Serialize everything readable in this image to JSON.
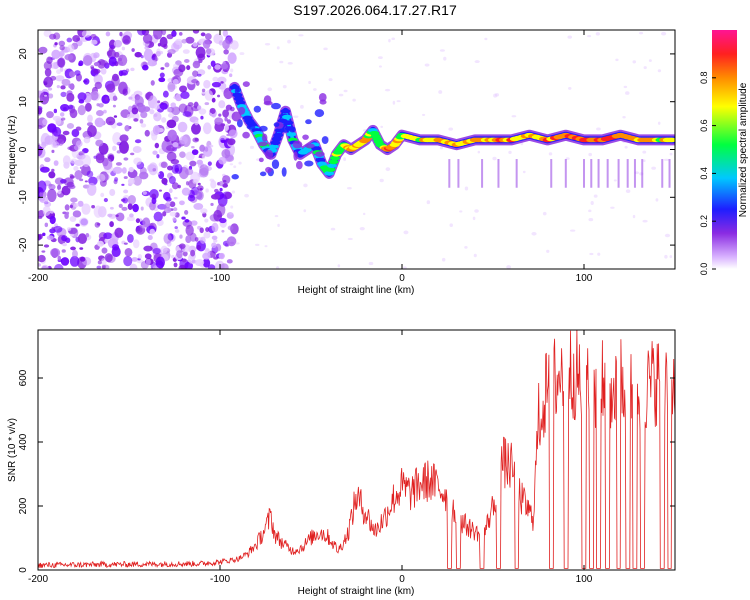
{
  "figure_title": "S197.2026.064.17.27.R17",
  "colors": {
    "snr_line": "#e02020",
    "spectrum_low": "#a030f0",
    "spectrum_ridge": "#00a0ff",
    "axis": "#000000"
  },
  "chart_data": [
    {
      "type": "heatmap",
      "title": "",
      "xlabel": "Height of straight line (km)",
      "ylabel": "Frequency (Hz)",
      "xlim": [
        -200,
        150
      ],
      "ylim": [
        -25,
        25
      ],
      "xticks": [
        -200,
        -100,
        0,
        100
      ],
      "yticks": [
        20,
        10,
        0,
        -10,
        -20
      ],
      "colorbar": {
        "label": "Normalized spectral amplitude",
        "range": [
          0,
          1
        ],
        "ticks": [
          0.0,
          0.2,
          0.4,
          0.6,
          0.8
        ],
        "tick_labels": [
          "0.0",
          "0.2",
          "0.4",
          "0.6",
          "0.8"
        ],
        "colormap": "rainbow (white-purple-blue-cyan-green-yellow-orange-red-magenta)"
      },
      "ridge": {
        "x": [
          -92,
          -88,
          -84,
          -80,
          -76,
          -72,
          -68,
          -64,
          -60,
          -56,
          -52,
          -48,
          -44,
          -40,
          -36,
          -32,
          -28,
          -24,
          -20,
          -16,
          -12,
          -8,
          -4,
          0,
          10,
          20,
          30,
          40,
          50,
          60,
          70,
          80,
          90,
          100,
          110,
          120,
          130,
          140,
          150
        ],
        "y": [
          13,
          9,
          6,
          4,
          1,
          -1,
          3,
          8,
          2,
          -1,
          0,
          1,
          -3,
          -5,
          -1,
          1,
          0,
          1,
          2,
          4,
          1,
          0,
          1,
          3,
          2,
          2,
          1,
          2,
          2,
          2,
          3,
          2,
          3,
          2,
          2,
          3,
          2,
          2,
          2
        ],
        "amplitude": [
          0.3,
          0.35,
          0.4,
          0.45,
          0.5,
          0.4,
          0.3,
          0.35,
          0.45,
          0.4,
          0.5,
          0.45,
          0.4,
          0.55,
          0.6,
          0.65,
          0.9,
          0.7,
          0.85,
          0.6,
          0.55,
          0.9,
          0.8,
          0.7,
          0.75,
          0.8,
          0.8,
          0.85,
          0.8,
          0.85,
          0.8,
          0.85,
          0.85,
          0.9,
          0.85,
          0.9,
          0.8,
          0.75,
          0.7
        ]
      },
      "notes": "Left region (x < -95) shows scattered purple noise across all frequencies."
    },
    {
      "type": "line",
      "title": "",
      "xlabel": "Height of straight line (km)",
      "ylabel": "SNR (10 * v/v)",
      "xlim": [
        -200,
        150
      ],
      "ylim": [
        0,
        750
      ],
      "xticks": [
        -200,
        -100,
        0,
        100
      ],
      "yticks": [
        0,
        200,
        400,
        600
      ],
      "series": [
        {
          "name": "SNR",
          "envelope_x": [
            -200,
            -110,
            -100,
            -90,
            -85,
            -80,
            -75,
            -72,
            -70,
            -65,
            -60,
            -55,
            -50,
            -45,
            -40,
            -35,
            -30,
            -25,
            -20,
            -15,
            -10,
            -5,
            0,
            5,
            10,
            15,
            20,
            25,
            30,
            35,
            40,
            45,
            50,
            55,
            60,
            65,
            70,
            72,
            75,
            80,
            85,
            90,
            95,
            100,
            105,
            110,
            115,
            120,
            125,
            130,
            135,
            140,
            145,
            150
          ],
          "envelope_y": [
            15,
            20,
            25,
            35,
            50,
            80,
            130,
            170,
            110,
            80,
            60,
            70,
            100,
            120,
            100,
            60,
            110,
            230,
            180,
            120,
            160,
            220,
            260,
            240,
            270,
            280,
            260,
            230,
            170,
            140,
            120,
            110,
            200,
            340,
            320,
            230,
            180,
            160,
            470,
            570,
            600,
            620,
            620,
            560,
            560,
            580,
            560,
            590,
            560,
            560,
            570,
            600,
            560,
            580
          ],
          "dropouts_x": [
            26,
            31,
            44,
            53,
            63,
            82,
            90,
            100,
            104,
            108,
            113,
            119,
            124,
            128,
            132,
            143,
            147
          ],
          "dropout_value": 5
        }
      ]
    }
  ]
}
